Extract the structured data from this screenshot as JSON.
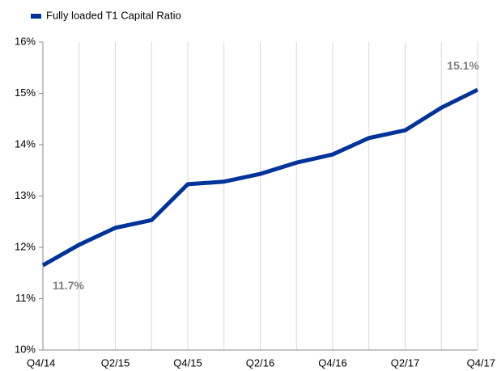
{
  "chart_data": {
    "type": "line",
    "categories": [
      "Q4/14",
      null,
      "Q2/15",
      null,
      "Q4/15",
      null,
      "Q2/16",
      null,
      "Q4/16",
      null,
      "Q2/17",
      null,
      "Q4/17"
    ],
    "series": [
      {
        "name": "Fully loaded T1 Capital Ratio",
        "color": "#003399",
        "values": [
          11.65,
          12.05,
          12.38,
          12.53,
          13.23,
          13.28,
          13.43,
          13.65,
          13.81,
          14.13,
          14.28,
          14.72,
          15.07
        ],
        "value_labels": [
          "11.7%",
          null,
          null,
          null,
          null,
          null,
          null,
          null,
          null,
          null,
          null,
          null,
          "15.1%"
        ]
      }
    ],
    "ylim": [
      10,
      16
    ],
    "yticks": [
      {
        "value": 10,
        "label": "10%"
      },
      {
        "value": 11,
        "label": "11%"
      },
      {
        "value": 12,
        "label": "12%"
      },
      {
        "value": 13,
        "label": "13%"
      },
      {
        "value": 14,
        "label": "14%"
      },
      {
        "value": 15,
        "label": "15%"
      },
      {
        "value": 16,
        "label": "16%"
      }
    ],
    "grid": true,
    "legend": "top-left"
  }
}
